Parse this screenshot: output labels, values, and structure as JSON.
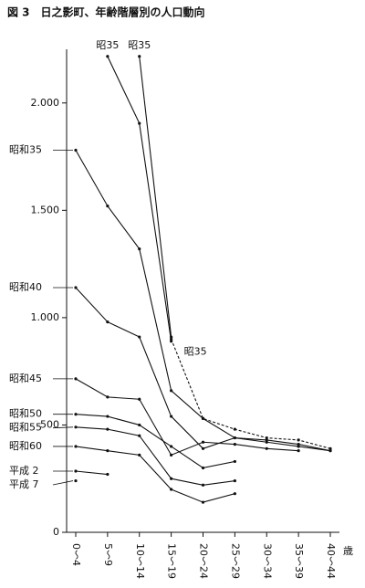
{
  "chart_data": {
    "type": "line",
    "title": "図 3　日之影町、年齢階層別の人口動向",
    "x_label": "歳",
    "categories": [
      "0〜4",
      "5〜9",
      "10〜14",
      "15〜19",
      "20〜24",
      "25〜29",
      "30〜34",
      "35〜39",
      "40〜44"
    ],
    "ylim": [
      0,
      2250
    ],
    "yticks": [
      0,
      500,
      {
        "value": 1000,
        "label": "1.000"
      },
      {
        "value": 1500,
        "label": "1.500"
      },
      {
        "value": 2000,
        "label": "2.000"
      }
    ],
    "color": "#111111",
    "series": [
      {
        "name": "昭35",
        "dashed": false,
        "values": [
          null,
          2217,
          1905,
          890,
          null,
          null,
          null,
          null,
          null
        ]
      },
      {
        "name": "昭35",
        "dashed": false,
        "values": [
          null,
          null,
          2217,
          910,
          null,
          null,
          null,
          null,
          null
        ]
      },
      {
        "name": "昭35",
        "dashed": true,
        "values": [
          null,
          null,
          null,
          900,
          530,
          480,
          440,
          430,
          390
        ]
      },
      {
        "name": "昭和35",
        "dashed": false,
        "values": [
          1780,
          1520,
          1320,
          660,
          530,
          440,
          420,
          400,
          380
        ]
      },
      {
        "name": "昭和40",
        "dashed": false,
        "values": [
          1140,
          980,
          910,
          540,
          390,
          440,
          430,
          410,
          380
        ]
      },
      {
        "name": "昭和45",
        "dashed": false,
        "values": [
          715,
          630,
          620,
          360,
          420,
          410,
          390,
          380,
          null
        ]
      },
      {
        "name": "昭和50",
        "dashed": false,
        "values": [
          550,
          540,
          500,
          400,
          300,
          330,
          null,
          null,
          null
        ]
      },
      {
        "name": "昭和55",
        "dashed": false,
        "values": [
          490,
          480,
          450,
          250,
          220,
          240,
          null,
          null,
          null
        ]
      },
      {
        "name": "昭和60",
        "dashed": false,
        "values": [
          400,
          380,
          360,
          200,
          140,
          180,
          null,
          null,
          null
        ]
      },
      {
        "name": "平成 2",
        "dashed": false,
        "values": [
          285,
          270,
          null,
          null,
          null,
          null,
          null,
          null,
          null
        ]
      },
      {
        "name": "平成 7",
        "dashed": false,
        "values": [
          240,
          null,
          null,
          null,
          null,
          null,
          null,
          null,
          null
        ]
      }
    ]
  }
}
